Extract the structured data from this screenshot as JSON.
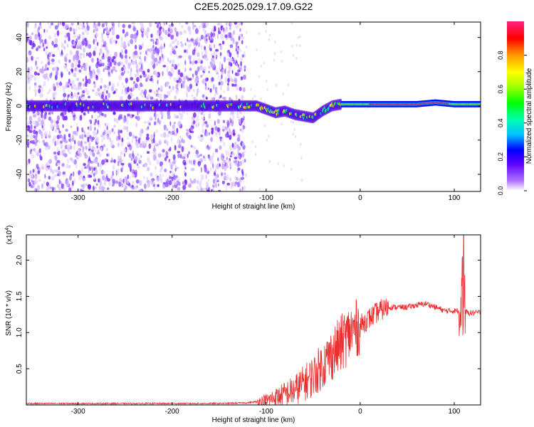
{
  "title": "C2E5.2025.029.17.09.G22",
  "chart_data": [
    {
      "type": "heatmap",
      "xlabel": "Height of straight line (km)",
      "ylabel": "Frequency (Hz)",
      "xlim": [
        -355,
        128
      ],
      "ylim": [
        -50,
        49
      ],
      "xticks": [
        -300,
        -200,
        -100,
        0,
        100
      ],
      "yticks": [
        -40,
        -20,
        0,
        20,
        40
      ],
      "noise_region_x": [
        -355,
        -130
      ],
      "ridge": {
        "x": [
          -355,
          -300,
          -250,
          -200,
          -150,
          -130,
          -110,
          -100,
          -90,
          -80,
          -70,
          -60,
          -50,
          -40,
          -30,
          -20,
          -10,
          0,
          20,
          40,
          60,
          80,
          100,
          128
        ],
        "y": [
          0,
          0,
          0,
          0,
          0,
          0,
          0,
          -2,
          -4,
          -3,
          -5,
          -6,
          -7,
          -3,
          0,
          1,
          1,
          1,
          1,
          1,
          1,
          2,
          1,
          1
        ]
      },
      "colorbar": {
        "label": "Normalized spectral amplitude",
        "range": [
          0,
          1
        ],
        "ticks": [
          "0.0",
          "0.2",
          "0.4",
          "0.6",
          "0.8"
        ]
      }
    },
    {
      "type": "line",
      "xlabel": "Height of straight line (km)",
      "ylabel": "SNR (10 * v/v)",
      "scale_label": "(x10",
      "scale_exp": "4",
      "xlim": [
        -355,
        128
      ],
      "ylim": [
        0,
        2.35
      ],
      "xticks": [
        -300,
        -200,
        -100,
        0,
        100
      ],
      "yticks": [
        "0.5",
        "1.0",
        "1.5",
        "2.0"
      ],
      "color": "#e83030",
      "series": [
        {
          "x": [
            -355,
            -300,
            -250,
            -200,
            -150,
            -120,
            -100,
            -90,
            -80,
            -70,
            -60,
            -50,
            -40,
            -30,
            -20,
            -10,
            0,
            10,
            20,
            30,
            40,
            50,
            60,
            70,
            80,
            90,
            100,
            105,
            110,
            115,
            120,
            128
          ],
          "y": [
            0.02,
            0.02,
            0.02,
            0.02,
            0.02,
            0.03,
            0.06,
            0.1,
            0.15,
            0.2,
            0.3,
            0.4,
            0.55,
            0.7,
            0.85,
            1.0,
            1.1,
            1.2,
            1.3,
            1.35,
            1.35,
            1.35,
            1.38,
            1.4,
            1.35,
            1.3,
            1.3,
            1.3,
            1.3,
            1.27,
            1.27,
            1.28
          ]
        }
      ]
    }
  ]
}
